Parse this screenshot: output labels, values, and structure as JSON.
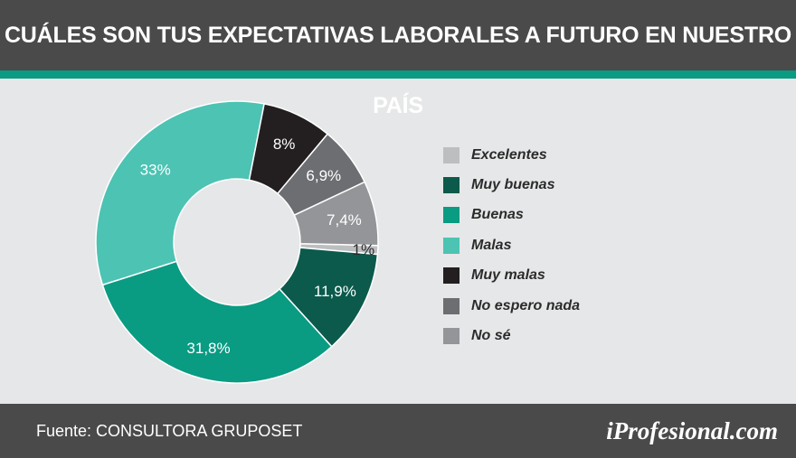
{
  "title": "CUÁLES SON TUS EXPECTATIVAS LABORALES A FUTURO EN NUESTRO PAÍS",
  "footer": {
    "source": "Fuente: CONSULTORA GRUPOSET",
    "brand": "iProfesional.com"
  },
  "colors": {
    "header_bg": "#4a4a4a",
    "accent_stripe": "#0a9b83",
    "background": "#e6e7e8"
  },
  "chart_data": {
    "type": "pie",
    "donut": true,
    "legend_position": "right",
    "categories": [
      "Excelentes",
      "Muy buenas",
      "Buenas",
      "Malas",
      "Muy malas",
      "No espero nada",
      "No sé"
    ],
    "values": [
      1,
      11.9,
      31.8,
      33,
      8,
      6.9,
      7.4
    ],
    "value_labels": [
      "1%",
      "11,9%",
      "31,8%",
      "33%",
      "8%",
      "6,9%",
      "7,4%"
    ],
    "colors": [
      "#bdbec0",
      "#0b5a4c",
      "#0a9b83",
      "#4cc3b3",
      "#231f20",
      "#6d6e71",
      "#939598"
    ]
  }
}
